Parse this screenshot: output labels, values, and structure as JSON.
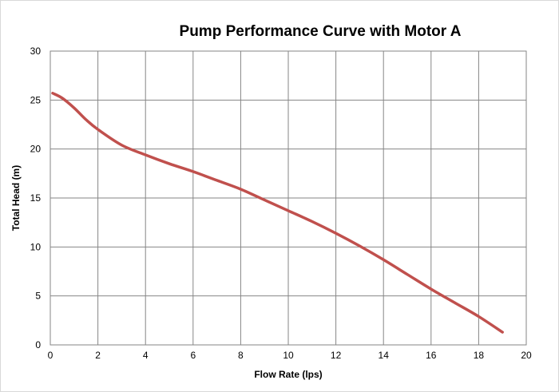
{
  "chart_data": {
    "type": "line",
    "title": "Pump Performance Curve with Motor A",
    "xlabel": "Flow Rate (lps)",
    "ylabel": "Total Head (m)",
    "xlim": [
      0,
      20
    ],
    "ylim": [
      0,
      30
    ],
    "x_ticks": [
      0,
      2,
      4,
      6,
      8,
      10,
      12,
      14,
      16,
      18,
      20
    ],
    "y_ticks": [
      0,
      5,
      10,
      15,
      20,
      25,
      30
    ],
    "grid": true,
    "legend": "none",
    "series": [
      {
        "color": "#c0504d",
        "x": [
          0.1,
          0.5,
          1.0,
          1.5,
          2.0,
          3.0,
          4.0,
          5.0,
          6.0,
          7.0,
          8.0,
          9.0,
          10.0,
          11.0,
          12.0,
          13.0,
          14.0,
          15.0,
          16.0,
          17.0,
          18.0,
          19.0
        ],
        "y": [
          25.7,
          25.2,
          24.2,
          23.0,
          22.0,
          20.4,
          19.4,
          18.5,
          17.7,
          16.8,
          15.9,
          14.8,
          13.7,
          12.6,
          11.4,
          10.1,
          8.7,
          7.2,
          5.7,
          4.3,
          2.9,
          1.3
        ]
      }
    ]
  }
}
